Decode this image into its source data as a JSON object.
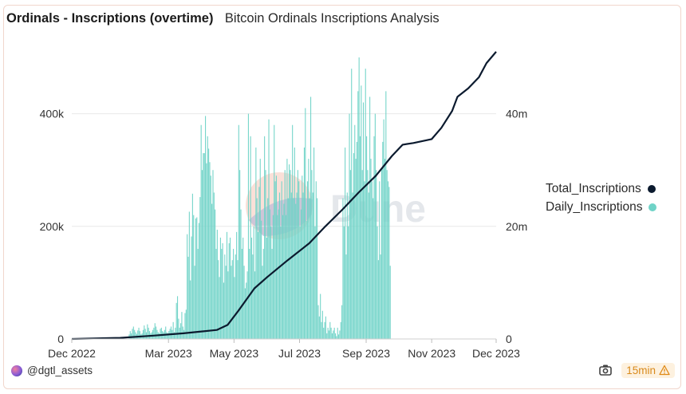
{
  "header": {
    "title": "Ordinals - Inscriptions (overtime)",
    "subtitle": "Bitcoin Ordinals Inscriptions Analysis"
  },
  "watermark": "Dune",
  "legend": {
    "items": [
      {
        "label": "Total_Inscriptions",
        "color": "#0b1a2e"
      },
      {
        "label": "Daily_Inscriptions",
        "color": "#6fd3c7"
      }
    ]
  },
  "footer": {
    "author": "@dgtl_assets",
    "refresh": "15min",
    "icons": [
      "camera-icon",
      "warning-icon"
    ]
  },
  "chart_data": {
    "type": "bar+line",
    "x_axis": {
      "ticks": [
        "Dec 2022",
        "Mar 2023",
        "May 2023",
        "Jul 2023",
        "Sep 2023",
        "Nov 2023",
        "Dec 2023"
      ],
      "tick_dates": [
        "2022-12-01",
        "2023-03-01",
        "2023-05-01",
        "2023-07-01",
        "2023-09-01",
        "2023-11-01",
        "2023-12-31"
      ],
      "range": [
        "2022-12-01",
        "2023-12-31"
      ]
    },
    "y_left": {
      "ticks": [
        "0",
        "200k",
        "400k"
      ],
      "tick_values": [
        0,
        200000,
        400000
      ],
      "range": [
        0,
        500000
      ]
    },
    "y_right": {
      "ticks": [
        "0",
        "20m",
        "40m"
      ],
      "tick_values": [
        0,
        20000000,
        40000000
      ],
      "range": [
        0,
        50000000
      ]
    },
    "gridlines": true,
    "legend_position": "right",
    "series": [
      {
        "name": "Daily_Inscriptions",
        "type": "bar",
        "axis": "left",
        "color": "#6fd3c7",
        "note": "daily values, one per day from 2022-12-14",
        "start_date": "2022-12-14",
        "values": [
          0,
          0,
          0,
          0,
          0,
          0,
          0,
          0,
          0,
          0,
          0,
          0,
          0,
          0,
          0,
          0,
          0,
          0,
          0,
          0,
          0,
          0,
          0,
          0,
          0,
          0,
          0,
          0,
          0,
          0,
          0,
          0,
          0,
          0,
          0,
          0,
          0,
          0,
          0,
          0,
          8000,
          14000,
          10000,
          18000,
          22000,
          16000,
          12000,
          9000,
          15000,
          20000,
          14000,
          8000,
          10000,
          16000,
          24000,
          18000,
          12000,
          26000,
          20000,
          14000,
          10000,
          12000,
          16000,
          20000,
          28000,
          22000,
          16000,
          12000,
          10000,
          18000,
          20000,
          14000,
          12000,
          16000,
          22000,
          12000,
          10000,
          14000,
          18000,
          22000,
          16000,
          30000,
          12000,
          20000,
          64000,
          76000,
          36000,
          20000,
          28000,
          48000,
          22000,
          16000,
          46000,
          52000,
          186000,
          146000,
          226000,
          104000,
          182000,
          258000,
          220000,
          130000,
          214000,
          216000,
          160000,
          206000,
          252000,
          380000,
          300000,
          330000,
          330000,
          396000,
          312000,
          360000,
          338000,
          314000,
          290000,
          240000,
          300000,
          260000,
          230000,
          160000,
          194000,
          140000,
          110000,
          180000,
          160000,
          170000,
          100000,
          150000,
          130000,
          190000,
          120000,
          170000,
          180000,
          130000,
          140000,
          160000,
          110000,
          150000,
          190000,
          140000,
          380000,
          300000,
          230000,
          160000,
          180000,
          130000,
          90000,
          100000,
          120000,
          400000,
          160000,
          360000,
          180000,
          150000,
          200000,
          120000,
          340000,
          250000,
          190000,
          270000,
          320000,
          210000,
          130000,
          160000,
          360000,
          300000,
          180000,
          250000,
          390000,
          230000,
          200000,
          160000,
          220000,
          380000,
          280000,
          290000,
          220000,
          230000,
          260000,
          200000,
          280000,
          220000,
          240000,
          300000,
          220000,
          320000,
          250000,
          310000,
          300000,
          260000,
          380000,
          250000,
          340000,
          240000,
          260000,
          300000,
          280000,
          200000,
          230000,
          290000,
          260000,
          340000,
          410000,
          210000,
          280000,
          320000,
          250000,
          430000,
          300000,
          260000,
          340000,
          200000,
          280000,
          250000,
          60000,
          40000,
          80000,
          30000,
          50000,
          20000,
          30000,
          40000,
          10000,
          20000,
          15000,
          30000,
          20000,
          10000,
          15000,
          20000,
          10000,
          5000,
          20000,
          8000,
          15000,
          30000,
          60000,
          250000,
          200000,
          340000,
          150000,
          260000,
          200000,
          400000,
          300000,
          480000,
          260000,
          330000,
          380000,
          320000,
          350000,
          440000,
          500000,
          360000,
          450000,
          300000,
          420000,
          280000,
          480000,
          360000,
          300000,
          260000,
          430000,
          320000,
          280000,
          250000,
          360000,
          400000,
          300000,
          200000,
          140000,
          280000,
          150000,
          300000,
          350000,
          390000,
          320000,
          440000,
          300000,
          280000,
          270000,
          130000,
          0,
          0,
          0,
          0,
          0,
          0,
          0,
          0,
          0,
          0
        ]
      },
      {
        "name": "Total_Inscriptions",
        "type": "line",
        "axis": "right",
        "color": "#0b1a2e",
        "points": [
          [
            "2022-12-01",
            0
          ],
          [
            "2023-01-15",
            200000
          ],
          [
            "2023-02-15",
            600000
          ],
          [
            "2023-03-15",
            1000000
          ],
          [
            "2023-04-15",
            1600000
          ],
          [
            "2023-04-25",
            2500000
          ],
          [
            "2023-05-05",
            5000000
          ],
          [
            "2023-05-20",
            9000000
          ],
          [
            "2023-06-01",
            11000000
          ],
          [
            "2023-06-20",
            14000000
          ],
          [
            "2023-07-10",
            17000000
          ],
          [
            "2023-07-25",
            20000000
          ],
          [
            "2023-08-10",
            23000000
          ],
          [
            "2023-08-25",
            26000000
          ],
          [
            "2023-09-10",
            29000000
          ],
          [
            "2023-09-25",
            32500000
          ],
          [
            "2023-10-05",
            34500000
          ],
          [
            "2023-10-15",
            34800000
          ],
          [
            "2023-11-01",
            35500000
          ],
          [
            "2023-11-10",
            37500000
          ],
          [
            "2023-11-20",
            40500000
          ],
          [
            "2023-11-25",
            43000000
          ],
          [
            "2023-12-05",
            44500000
          ],
          [
            "2023-12-15",
            46500000
          ],
          [
            "2023-12-22",
            49000000
          ],
          [
            "2023-12-31",
            51000000
          ]
        ]
      }
    ]
  }
}
